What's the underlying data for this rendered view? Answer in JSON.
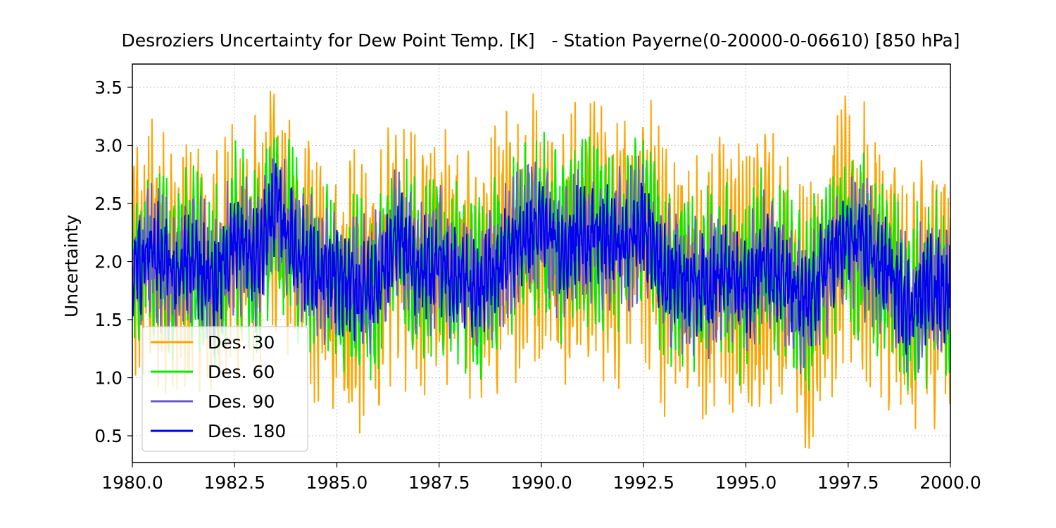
{
  "chart_data": {
    "type": "line",
    "title": "Desroziers Uncertainty for Dew Point Temp. [K]   - Station Payerne(0-20000-0-06610) [850 hPa]",
    "xlabel": "",
    "ylabel": "Uncertainty",
    "xlim": [
      1980.0,
      2000.0
    ],
    "ylim": [
      0.27,
      3.7
    ],
    "xticks": [
      1980.0,
      1982.5,
      1985.0,
      1987.5,
      1990.0,
      1992.5,
      1995.0,
      1997.5,
      2000.0
    ],
    "xtick_labels": [
      "1980.0",
      "1982.5",
      "1985.0",
      "1987.5",
      "1990.0",
      "1992.5",
      "1995.0",
      "1997.5",
      "2000.0"
    ],
    "yticks": [
      0.5,
      1.0,
      1.5,
      2.0,
      2.5,
      3.0,
      3.5
    ],
    "ytick_labels": [
      "0.5",
      "1.0",
      "1.5",
      "2.0",
      "2.5",
      "3.0",
      "3.5"
    ],
    "grid": true,
    "legend_position": "lower-left",
    "series": [
      {
        "name": "Des. 30",
        "color": "#ffa500",
        "halfwidth": 0.8
      },
      {
        "name": "Des. 60",
        "color": "#00ee00",
        "halfwidth": 0.55
      },
      {
        "name": "Des. 90",
        "color": "#6a5acd",
        "halfwidth": 0.42
      },
      {
        "name": "Des. 180",
        "color": "#0000ee",
        "halfwidth": 0.3
      }
    ],
    "centre_line": {
      "x": [
        1980.0,
        1980.5,
        1981.0,
        1981.5,
        1982.0,
        1982.5,
        1983.0,
        1983.5,
        1984.0,
        1984.5,
        1985.0,
        1985.5,
        1986.0,
        1986.5,
        1987.0,
        1987.5,
        1988.0,
        1988.5,
        1989.0,
        1989.5,
        1990.0,
        1990.5,
        1991.0,
        1991.5,
        1992.0,
        1992.5,
        1993.0,
        1993.5,
        1994.0,
        1994.5,
        1995.0,
        1995.5,
        1996.0,
        1996.5,
        1997.0,
        1997.5,
        1998.0,
        1998.5,
        1999.0,
        1999.5,
        2000.0
      ],
      "y": [
        1.9,
        2.1,
        1.9,
        2.0,
        1.8,
        2.2,
        2.0,
        2.5,
        2.1,
        1.9,
        1.85,
        1.75,
        1.8,
        2.25,
        1.9,
        2.0,
        1.85,
        1.75,
        2.0,
        2.2,
        2.3,
        2.1,
        2.25,
        2.2,
        2.15,
        2.3,
        1.9,
        1.85,
        1.8,
        1.9,
        1.75,
        2.05,
        1.8,
        1.6,
        2.0,
        2.2,
        2.1,
        1.9,
        1.6,
        1.8,
        1.75
      ]
    }
  }
}
